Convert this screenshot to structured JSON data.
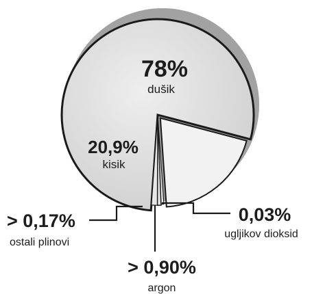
{
  "chart_data": {
    "type": "pie",
    "slices": [
      {
        "label": "dušik",
        "value_text": "78%",
        "value": 78.0,
        "fill": "#d9d9d9"
      },
      {
        "label": "kisik",
        "value_text": "20,9%",
        "value": 20.9,
        "fill": "#f2f2f2"
      },
      {
        "label": "argon",
        "value_text": "> 0,90%",
        "value": 0.9,
        "fill": "#e6e6e6"
      },
      {
        "label": "ugljikov dioksid",
        "value_text": "0,03%",
        "value": 0.03,
        "fill": "#e6e6e6"
      },
      {
        "label": "ostali plinovi",
        "value_text": "> 0,17%",
        "value": 0.17,
        "fill": "#e6e6e6"
      }
    ]
  },
  "colors": {
    "outline": "#1a1a1a",
    "shadow": "#4a4a4a",
    "text": "#1c1c1c"
  }
}
